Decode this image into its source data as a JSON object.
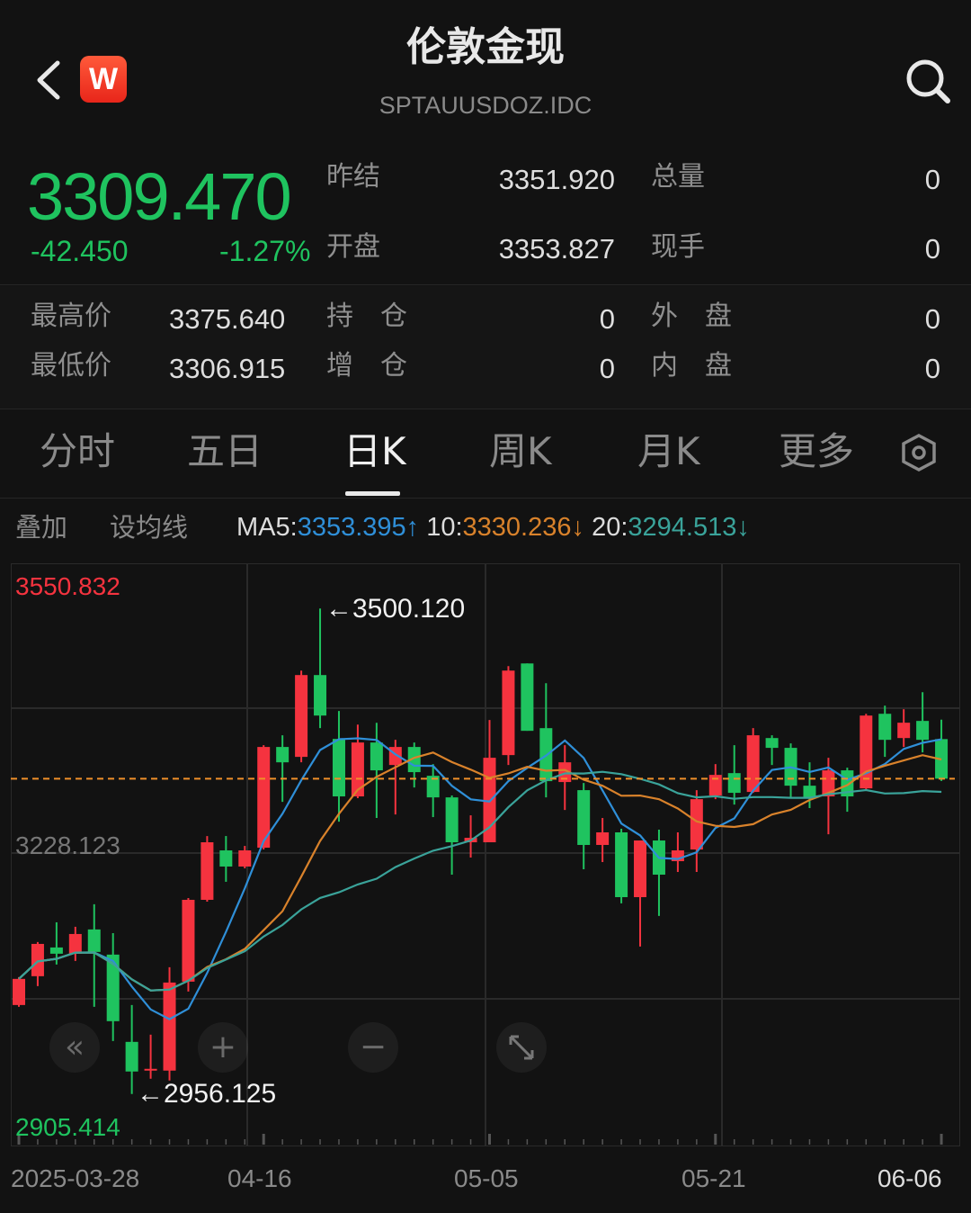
{
  "header": {
    "title": "伦敦金现",
    "code": "SPTAUUSDOZ.IDC",
    "logo_letter": "W",
    "back_icon": "chevron-left-icon",
    "search_icon": "search-icon"
  },
  "quote": {
    "price": "3309.470",
    "change": "-42.450",
    "change_pct": "-1.27%",
    "color_down": "#1fc35f",
    "color_up": "#f5333f",
    "prev_close_label": "昨结",
    "prev_close": "3351.920",
    "volume_label": "总量",
    "volume": "0",
    "open_label": "开盘",
    "open": "3353.827",
    "current_hand_label": "现手",
    "current_hand": "0",
    "high_label": "最高价",
    "high": "3375.640",
    "position_label": "持　仓",
    "position": "0",
    "outer_label": "外　盘",
    "outer": "0",
    "low_label": "最低价",
    "low": "3306.915",
    "add_position_label": "增　仓",
    "add_position": "0",
    "inner_label": "内　盘",
    "inner": "0"
  },
  "tabs": [
    {
      "label": "分时"
    },
    {
      "label": "五日"
    },
    {
      "label": "日K",
      "active": true
    },
    {
      "label": "周K"
    },
    {
      "label": "月K"
    },
    {
      "label": "更多"
    }
  ],
  "settings_icon": "hexagon-settings-icon",
  "subbar": {
    "overlay": "叠加",
    "set_ma": "设均线",
    "ma5_label": "MA5:",
    "ma5": "3353.395",
    "ma5_arrow": "↑",
    "ma10_label": "10:",
    "ma10": "3330.236",
    "ma10_arrow": "↓",
    "ma20_label": "20:",
    "ma20": "3294.513",
    "ma20_arrow": "↓",
    "ma5_color": "#2f8fd8",
    "ma10_color": "#d9822b",
    "ma20_color": "#3aa39a"
  },
  "controls": {
    "scroll_left": "«",
    "zoom_in": "+",
    "zoom_out": "−",
    "fullscreen_icon": "expand-icon"
  },
  "chart_data": {
    "type": "candlestick",
    "ylim": [
      2905.414,
      3550.832
    ],
    "y_labels": {
      "top": "3550.832",
      "mid": "3228.123",
      "bottom": "2905.414"
    },
    "annotations": {
      "high": "←3500.120",
      "low": "←2956.125"
    },
    "current_price": 3309.47,
    "x_labels": [
      {
        "label": "2025-03-28",
        "index": 0
      },
      {
        "label": "04-16",
        "index": 13
      },
      {
        "label": "05-05",
        "index": 25
      },
      {
        "label": "05-21",
        "index": 37
      },
      {
        "label": "06-06",
        "index": 49
      }
    ],
    "grid": true,
    "candles": [
      [
        3055.8,
        3085.1,
        3087.1,
        3053.8
      ],
      [
        3088.1,
        3124.3,
        3126.4,
        3077.0
      ],
      [
        3120.3,
        3113.3,
        3148.5,
        3101.2
      ],
      [
        3113.3,
        3135.4,
        3143.5,
        3105.2
      ],
      [
        3140.5,
        3115.3,
        3168.7,
        3053.8
      ],
      [
        3112.3,
        3037.7,
        3136.4,
        3015.5
      ],
      [
        3014.5,
        2981.3,
        3055.8,
        2956.1
      ],
      [
        2982.3,
        2984.3,
        3022.6,
        2973.2
      ],
      [
        2982.3,
        3081.0,
        3098.1,
        2971.2
      ],
      [
        3082.0,
        3173.7,
        3175.7,
        3070.9
      ],
      [
        3173.7,
        3238.2,
        3245.2,
        3171.7
      ],
      [
        3229.1,
        3211.0,
        3245.2,
        3193.9
      ],
      [
        3211.0,
        3229.1,
        3234.1,
        3209.0
      ],
      [
        3232.1,
        3345.0,
        3347.0,
        3230.1
      ],
      [
        3345.0,
        3327.8,
        3358.1,
        3283.5
      ],
      [
        3333.9,
        3425.6,
        3430.6,
        3327.8
      ],
      [
        3425.6,
        3380.2,
        3500.1,
        3366.1
      ],
      [
        3354.0,
        3289.6,
        3385.3,
        3261.3
      ],
      [
        3289.6,
        3350.0,
        3370.1,
        3287.6
      ],
      [
        3350.0,
        3318.8,
        3372.1,
        3265.4
      ],
      [
        3324.8,
        3345.0,
        3353.0,
        3269.4
      ],
      [
        3345.0,
        3316.8,
        3350.0,
        3299.6
      ],
      [
        3312.7,
        3288.5,
        3325.8,
        3266.4
      ],
      [
        3288.5,
        3238.2,
        3290.6,
        3201.9
      ],
      [
        3238.2,
        3243.2,
        3268.4,
        3221.1
      ],
      [
        3238.2,
        3332.9,
        3375.2,
        3238.2
      ],
      [
        3335.9,
        3430.6,
        3435.6,
        3324.8
      ],
      [
        3438.6,
        3363.1,
        3438.6,
        3363.1
      ],
      [
        3366.1,
        3306.7,
        3416.5,
        3288.5
      ],
      [
        3305.7,
        3327.8,
        3347.0,
        3274.4
      ],
      [
        3296.6,
        3235.2,
        3304.7,
        3208.0
      ],
      [
        3235.2,
        3249.3,
        3265.4,
        3216.0
      ],
      [
        3249.3,
        3176.7,
        3253.3,
        3169.7
      ],
      [
        3176.7,
        3240.2,
        3240.2,
        3121.3
      ],
      [
        3240.2,
        3201.9,
        3252.3,
        3155.6
      ],
      [
        3217.0,
        3229.1,
        3249.3,
        3204.9
      ],
      [
        3230.1,
        3286.5,
        3296.6,
        3204.9
      ],
      [
        3290.6,
        3313.7,
        3325.8,
        3286.5
      ],
      [
        3315.7,
        3293.6,
        3347.0,
        3280.5
      ],
      [
        3294.6,
        3358.1,
        3366.1,
        3293.6
      ],
      [
        3355.0,
        3344.0,
        3358.1,
        3324.8
      ],
      [
        3344.0,
        3301.6,
        3349.0,
        3288.5
      ],
      [
        3301.6,
        3287.5,
        3327.8,
        3276.5
      ],
      [
        3289.6,
        3318.8,
        3332.9,
        3247.2
      ],
      [
        3318.8,
        3289.6,
        3321.8,
        3272.4
      ],
      [
        3298.6,
        3380.2,
        3382.2,
        3297.6
      ],
      [
        3382.2,
        3353.0,
        3391.3,
        3333.9
      ],
      [
        3355.0,
        3372.2,
        3387.3,
        3345.0
      ],
      [
        3374.2,
        3353.0,
        3406.4,
        3338.9
      ],
      [
        3353.827,
        3309.47,
        3375.64,
        3306.915
      ]
    ],
    "candle_fields": [
      "open",
      "close",
      "high",
      "low"
    ],
    "ma_periods": [
      5,
      10,
      20
    ]
  }
}
